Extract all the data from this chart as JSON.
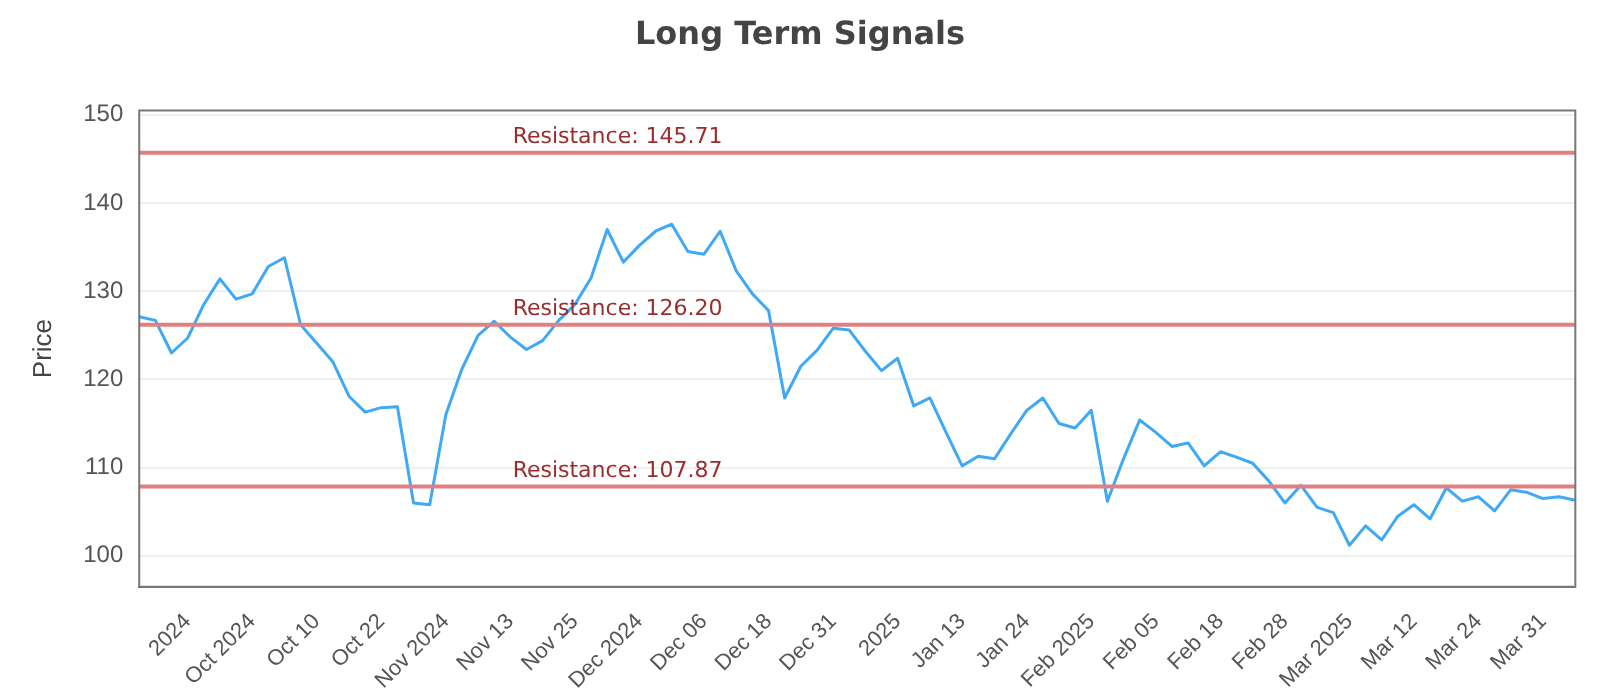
{
  "chart_data": {
    "type": "line",
    "title": "Long Term Signals",
    "ylabel": "Price",
    "categories": [
      null,
      null,
      null,
      "2024",
      null,
      null,
      null,
      "Oct 2024",
      null,
      null,
      null,
      "Oct 10",
      null,
      null,
      null,
      "Oct 22",
      null,
      null,
      null,
      "Nov 2024",
      null,
      null,
      null,
      "Nov 13",
      null,
      null,
      null,
      "Nov 25",
      null,
      null,
      null,
      "Dec 2024",
      null,
      null,
      null,
      "Dec 06",
      null,
      null,
      null,
      "Dec 18",
      null,
      null,
      null,
      "Dec 31",
      null,
      null,
      null,
      "2025",
      null,
      null,
      null,
      "Jan 13",
      null,
      null,
      null,
      "Jan 24",
      null,
      null,
      null,
      "Feb 2025",
      null,
      null,
      null,
      "Feb 05",
      null,
      null,
      null,
      "Feb 18",
      null,
      null,
      null,
      "Feb 28",
      null,
      null,
      null,
      "Mar 2025",
      null,
      null,
      null,
      "Mar 12",
      null,
      null,
      null,
      "Mar 24",
      null,
      null,
      null,
      "Mar 31",
      null,
      null
    ],
    "series": [
      {
        "color": "#3fa9f5",
        "values": [
          127.1,
          126.7,
          123,
          124.7,
          128.5,
          131.4,
          129.1,
          129.7,
          132.8,
          133.8,
          126.2,
          124.1,
          122,
          118.1,
          116.3,
          116.8,
          116.9,
          106,
          105.8,
          116,
          121.2,
          125,
          126.6,
          124.8,
          123.4,
          124.4,
          126.7,
          128.5,
          131.5,
          137,
          133.3,
          135.2,
          136.8,
          137.6,
          134.5,
          134.2,
          136.8,
          132.3,
          129.7,
          127.8,
          117.9,
          121.5,
          123.3,
          125.8,
          125.6,
          123.2,
          121,
          122.4,
          117,
          117.9,
          114,
          110.2,
          111.3,
          111,
          113.8,
          116.5,
          117.9,
          115,
          114.5,
          116.5,
          106.2,
          111,
          115.4,
          114,
          112.4,
          112.8,
          110.2,
          111.8,
          111.2,
          110.5,
          108.5,
          106,
          108,
          105.5,
          104.9,
          101.2,
          103.4,
          101.8,
          104.5,
          105.8,
          104.2,
          107.7,
          106.2,
          106.7,
          105.1,
          107.5,
          107.2,
          106.5,
          106.7,
          106.3
        ]
      }
    ],
    "ylim": [
      96.5,
      150.5
    ],
    "yticks": [
      100,
      110,
      120,
      130,
      140,
      150
    ],
    "grid": "y",
    "legend": false,
    "marker": "none",
    "line_style": "solid",
    "ref_lines": [
      {
        "axis": "y",
        "value": 145.71,
        "label": "Resistance: 145.71",
        "color": "#e08080"
      },
      {
        "axis": "y",
        "value": 126.2,
        "label": "Resistance: 126.20",
        "color": "#e08080"
      },
      {
        "axis": "y",
        "value": 107.87,
        "label": "Resistance: 107.87",
        "color": "#e08080"
      }
    ]
  }
}
